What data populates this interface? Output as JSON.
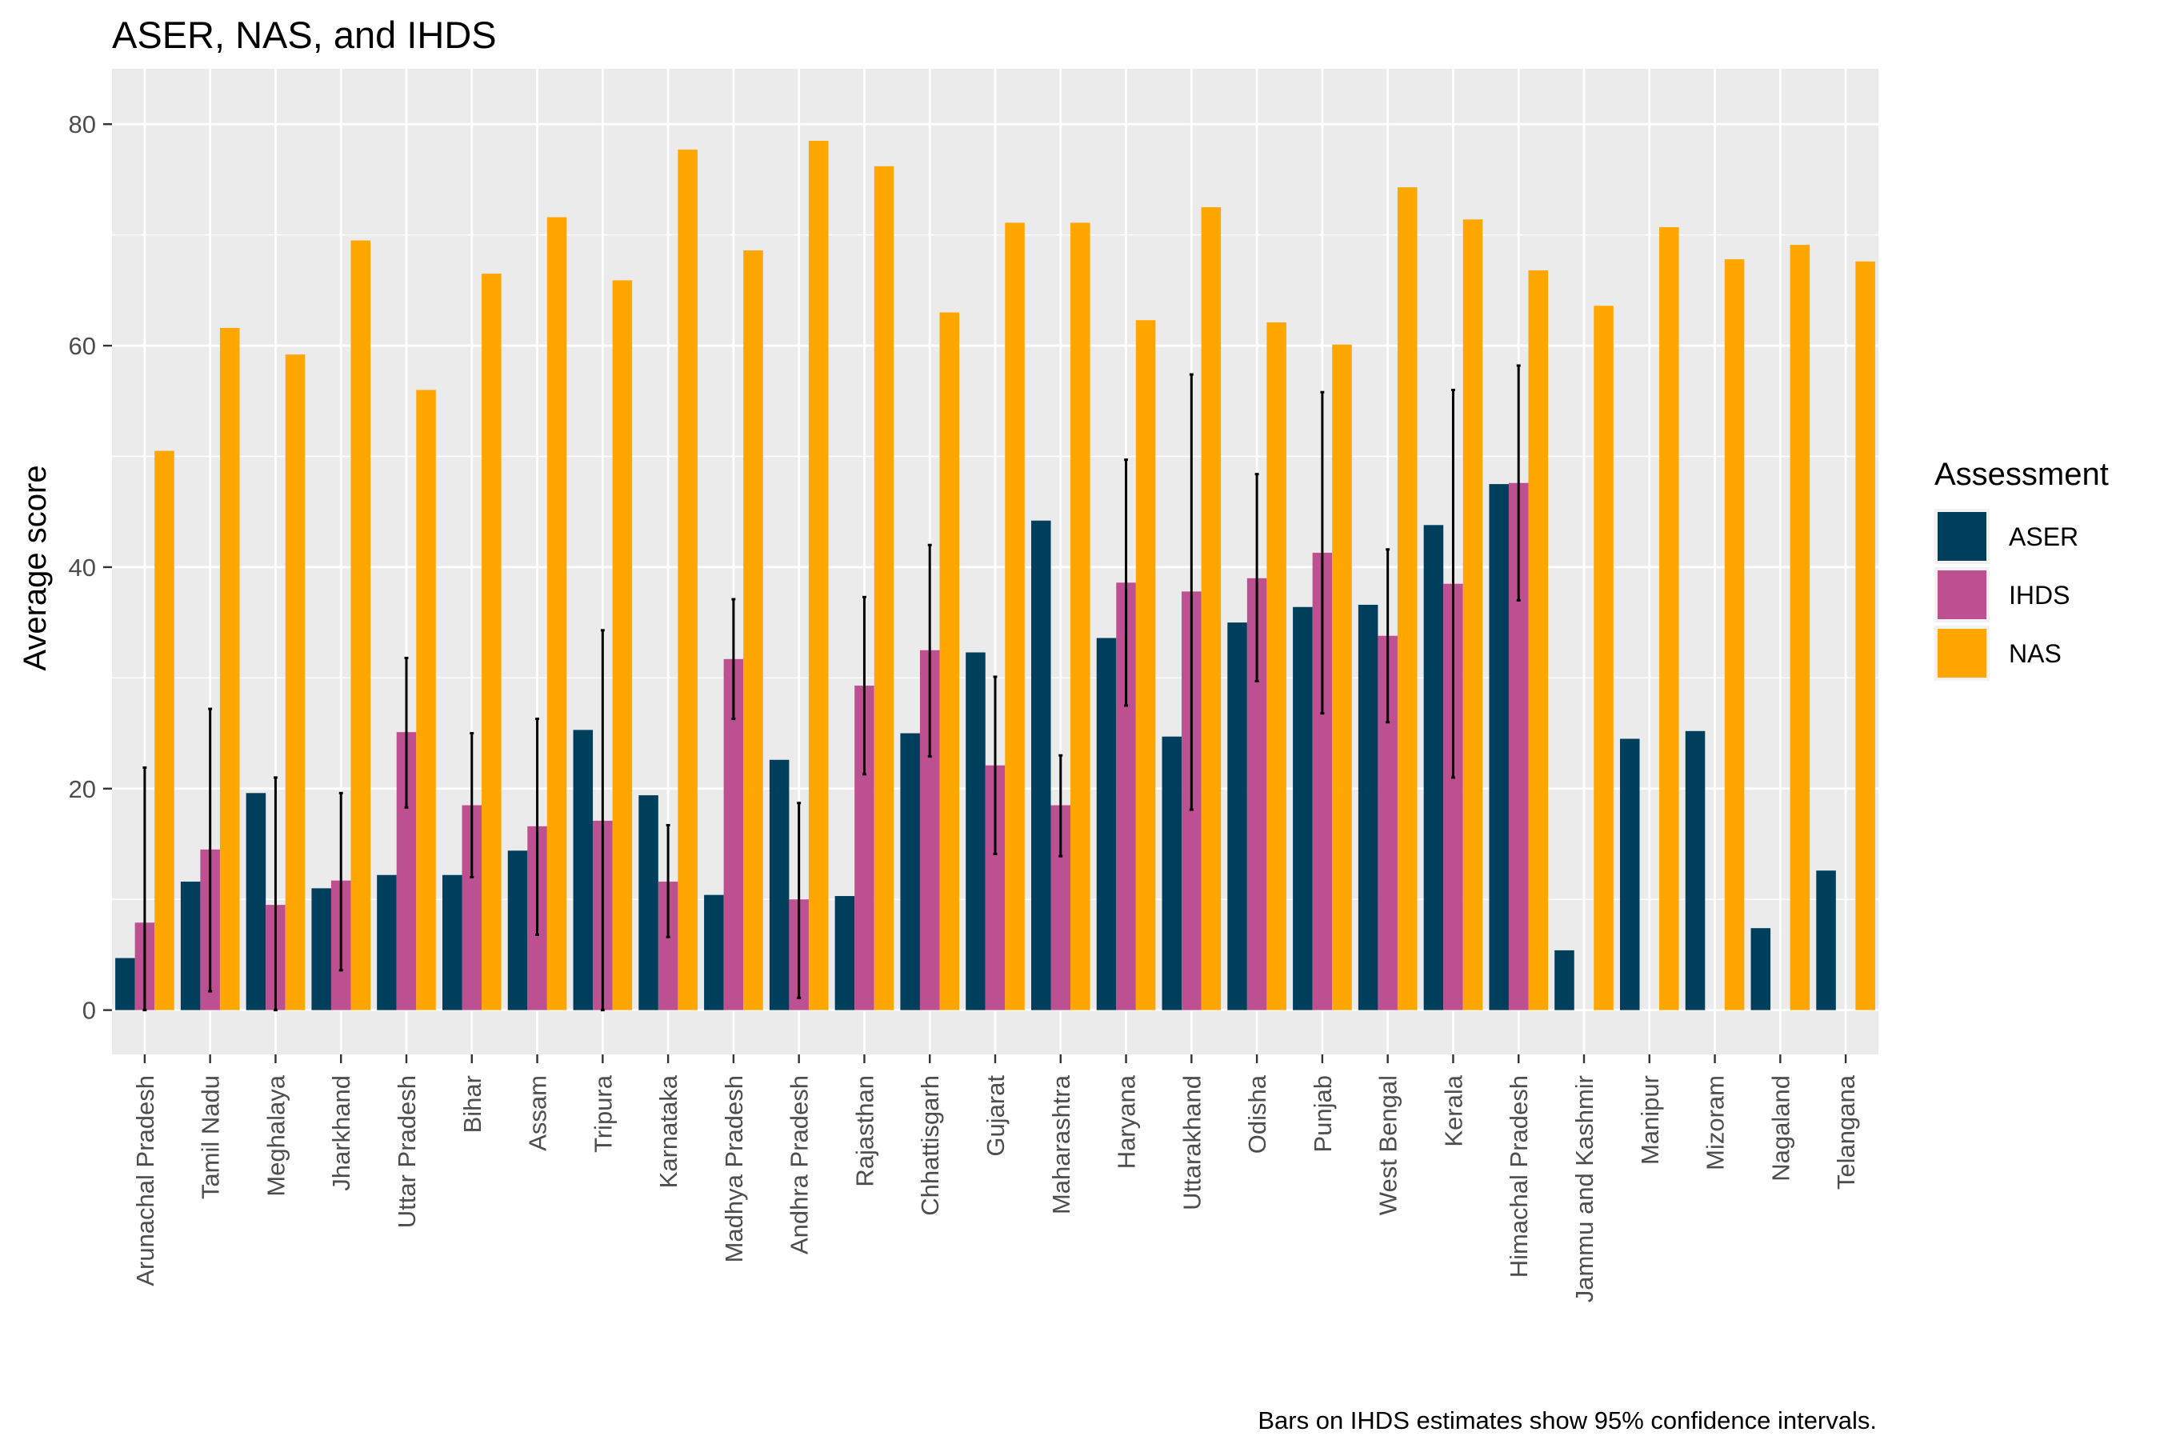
{
  "chart_data": {
    "type": "bar",
    "title": "ASER, NAS, and IHDS",
    "ylabel": "Average score",
    "xlabel": "",
    "ylim": [
      -4,
      85
    ],
    "yticks": [
      0,
      20,
      40,
      60,
      80
    ],
    "grid": true,
    "legend": {
      "title": "Assessment",
      "placement": "right"
    },
    "caption": "Bars on IHDS estimates show 95% confidence intervals.",
    "categories": [
      "Arunachal Pradesh",
      "Tamil Nadu",
      "Meghalaya",
      "Jharkhand",
      "Uttar Pradesh",
      "Bihar",
      "Assam",
      "Tripura",
      "Karnataka",
      "Madhya Pradesh",
      "Andhra Pradesh",
      "Rajasthan",
      "Chhattisgarh",
      "Gujarat",
      "Maharashtra",
      "Haryana",
      "Uttarakhand",
      "Odisha",
      "Punjab",
      "West Bengal",
      "Kerala",
      "Himachal Pradesh",
      "Jammu and Kashmir",
      "Manipur",
      "Mizoram",
      "Nagaland",
      "Telangana"
    ],
    "series": [
      {
        "name": "ASER",
        "color": "#003f5c",
        "values": [
          4.7,
          11.6,
          19.6,
          11.0,
          12.2,
          12.2,
          14.4,
          25.3,
          19.4,
          10.4,
          22.6,
          10.3,
          25.0,
          32.3,
          44.2,
          33.6,
          24.7,
          35.0,
          36.4,
          36.6,
          43.8,
          47.5,
          5.4,
          24.5,
          25.2,
          7.4,
          12.6
        ]
      },
      {
        "name": "IHDS",
        "color": "#bc5090",
        "values": [
          7.9,
          14.5,
          9.5,
          11.7,
          25.1,
          18.5,
          16.6,
          17.1,
          11.6,
          31.7,
          10.0,
          29.3,
          32.5,
          22.1,
          18.5,
          38.6,
          37.8,
          39.0,
          41.3,
          33.8,
          38.5,
          47.6,
          null,
          null,
          null,
          null,
          null
        ],
        "ci_low": [
          0.0,
          1.7,
          0.0,
          3.6,
          18.3,
          12.0,
          6.8,
          0.0,
          6.6,
          26.3,
          1.1,
          21.3,
          22.9,
          14.1,
          13.9,
          27.5,
          18.1,
          29.7,
          26.8,
          26.0,
          21.0,
          37.0,
          null,
          null,
          null,
          null,
          null
        ],
        "ci_high": [
          21.9,
          27.2,
          21.0,
          19.6,
          31.8,
          25.0,
          26.3,
          34.3,
          16.7,
          37.1,
          18.7,
          37.3,
          42.0,
          30.1,
          23.0,
          49.7,
          57.4,
          48.4,
          55.8,
          41.6,
          56.0,
          58.2,
          null,
          null,
          null,
          null,
          null
        ]
      },
      {
        "name": "NAS",
        "color": "#ffa600",
        "values": [
          50.5,
          61.6,
          59.2,
          69.5,
          56.0,
          66.5,
          71.6,
          65.9,
          77.7,
          68.6,
          78.5,
          76.2,
          63.0,
          71.1,
          71.1,
          62.3,
          72.5,
          62.1,
          60.1,
          74.3,
          71.4,
          66.8,
          63.6,
          70.7,
          67.8,
          69.1,
          67.6
        ]
      }
    ]
  }
}
